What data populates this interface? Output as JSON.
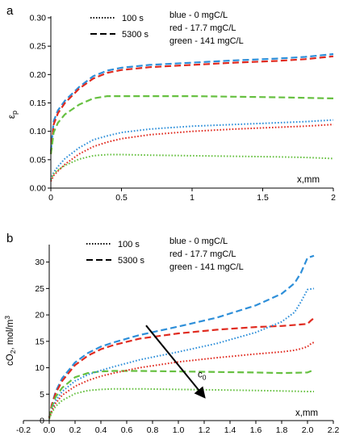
{
  "chart_data": [
    {
      "type": "line",
      "panel_label": "a",
      "xlabel": "x,mm",
      "ylabel": "εp",
      "ylabel_main": "ε",
      "ylabel_sub": "p",
      "xlim": [
        0,
        2
      ],
      "ylim": [
        0,
        0.3
      ],
      "xticks": [
        0,
        0.5,
        1,
        1.5,
        2
      ],
      "xtick_labels": [
        "0",
        "0.5",
        "1",
        "1.5",
        "2"
      ],
      "yticks": [
        0,
        0.05,
        0.1,
        0.15,
        0.2,
        0.25,
        0.3
      ],
      "ytick_labels": [
        "0.00",
        "0.05",
        "0.10",
        "0.15",
        "0.20",
        "0.25",
        "0.30"
      ],
      "grid": false,
      "style_legend": [
        {
          "label": "100 s",
          "dash": "dotted"
        },
        {
          "label": "5300 s",
          "dash": "dashed"
        }
      ],
      "color_legend": [
        {
          "label": "blue - 0 mgC/L",
          "color": "#2e8fd9"
        },
        {
          "label": "red - 17.7 mgC/L",
          "color": "#e02b20"
        },
        {
          "label": "green - 141 mgC/L",
          "color": "#66c040"
        }
      ],
      "series": [
        {
          "color": "#2e8fd9",
          "dash": "dashed",
          "x": [
            0,
            0.02,
            0.05,
            0.1,
            0.2,
            0.3,
            0.4,
            0.5,
            0.7,
            1.0,
            1.3,
            1.6,
            1.8,
            2.0
          ],
          "y": [
            0.065,
            0.118,
            0.137,
            0.154,
            0.178,
            0.197,
            0.207,
            0.212,
            0.217,
            0.221,
            0.225,
            0.228,
            0.231,
            0.236
          ]
        },
        {
          "color": "#e02b20",
          "dash": "dashed",
          "x": [
            0,
            0.02,
            0.05,
            0.1,
            0.2,
            0.3,
            0.4,
            0.5,
            0.7,
            1.0,
            1.3,
            1.6,
            1.8,
            2.0
          ],
          "y": [
            0.06,
            0.112,
            0.132,
            0.15,
            0.175,
            0.193,
            0.203,
            0.208,
            0.213,
            0.217,
            0.221,
            0.224,
            0.227,
            0.232
          ]
        },
        {
          "color": "#66c040",
          "dash": "dashed",
          "x": [
            0,
            0.02,
            0.05,
            0.1,
            0.2,
            0.3,
            0.4,
            0.5,
            0.7,
            1.0,
            1.3,
            1.6,
            1.8,
            2.0
          ],
          "y": [
            0.06,
            0.098,
            0.115,
            0.13,
            0.147,
            0.158,
            0.162,
            0.162,
            0.162,
            0.162,
            0.161,
            0.16,
            0.159,
            0.158
          ]
        },
        {
          "color": "#2e8fd9",
          "dash": "dotted",
          "x": [
            0,
            0.02,
            0.05,
            0.1,
            0.2,
            0.3,
            0.4,
            0.5,
            0.7,
            1.0,
            1.3,
            1.6,
            1.8,
            2.0
          ],
          "y": [
            0.015,
            0.028,
            0.038,
            0.052,
            0.071,
            0.085,
            0.092,
            0.098,
            0.104,
            0.109,
            0.112,
            0.115,
            0.117,
            0.12
          ]
        },
        {
          "color": "#e02b20",
          "dash": "dotted",
          "x": [
            0,
            0.02,
            0.05,
            0.1,
            0.2,
            0.3,
            0.4,
            0.5,
            0.7,
            1.0,
            1.3,
            1.6,
            1.8,
            2.0
          ],
          "y": [
            0.012,
            0.022,
            0.03,
            0.042,
            0.06,
            0.073,
            0.081,
            0.087,
            0.094,
            0.1,
            0.104,
            0.107,
            0.109,
            0.112
          ]
        },
        {
          "color": "#66c040",
          "dash": "dotted",
          "x": [
            0,
            0.02,
            0.05,
            0.1,
            0.2,
            0.3,
            0.4,
            0.5,
            0.7,
            1.0,
            1.3,
            1.6,
            1.8,
            2.0
          ],
          "y": [
            0.015,
            0.025,
            0.032,
            0.04,
            0.051,
            0.057,
            0.059,
            0.059,
            0.058,
            0.057,
            0.056,
            0.055,
            0.054,
            0.052
          ]
        }
      ]
    },
    {
      "type": "line",
      "panel_label": "b",
      "xlabel": "x,mm",
      "ylabel": "cO2, mol/m3",
      "ylabel_prefix": "cO",
      "ylabel_sub": "2",
      "ylabel_mid": ", mol/m",
      "ylabel_sup": "3",
      "xlim": [
        -0.2,
        2.2
      ],
      "ylim": [
        0,
        33
      ],
      "xticks": [
        -0.2,
        0,
        0.2,
        0.4,
        0.6,
        0.8,
        1.0,
        1.2,
        1.4,
        1.6,
        1.8,
        2.0,
        2.2
      ],
      "xtick_labels": [
        "-0.2",
        "0.0",
        "0.2",
        "0.4",
        "0.6",
        "0.8",
        "1.0",
        "1.2",
        "1.4",
        "1.6",
        "1.8",
        "2.0",
        "2.2"
      ],
      "yticks": [
        0,
        5,
        10,
        15,
        20,
        25,
        30
      ],
      "ytick_labels": [
        "0",
        "5",
        "10",
        "15",
        "20",
        "25",
        "30"
      ],
      "grid": false,
      "style_legend": [
        {
          "label": "100 s",
          "dash": "dotted"
        },
        {
          "label": "5300 s",
          "dash": "dashed"
        }
      ],
      "color_legend": [
        {
          "label": "blue - 0 mgC/L",
          "color": "#2e8fd9"
        },
        {
          "label": "red - 17.7 mgC/L",
          "color": "#e02b20"
        },
        {
          "label": "green - 141 mgC/L",
          "color": "#66c040"
        }
      ],
      "arrow": {
        "from": [
          0.75,
          18
        ],
        "to": [
          1.2,
          4.5
        ],
        "label_main": "c",
        "label_sub": "0"
      },
      "series": [
        {
          "color": "#2e8fd9",
          "dash": "dashed",
          "x": [
            0,
            0.02,
            0.05,
            0.1,
            0.2,
            0.3,
            0.4,
            0.5,
            0.7,
            1.0,
            1.3,
            1.6,
            1.8,
            1.9,
            1.95,
            2.0,
            2.05
          ],
          "y": [
            0.5,
            3,
            5.5,
            8,
            11,
            12.8,
            14,
            14.8,
            16.2,
            17.8,
            19.5,
            21.8,
            24,
            26,
            28,
            30.8,
            31.2
          ]
        },
        {
          "color": "#e02b20",
          "dash": "dashed",
          "x": [
            0,
            0.02,
            0.05,
            0.1,
            0.2,
            0.3,
            0.4,
            0.5,
            0.7,
            1.0,
            1.3,
            1.6,
            1.8,
            1.95,
            2.0,
            2.03,
            2.05
          ],
          "y": [
            0.5,
            3,
            5.2,
            7.5,
            10.5,
            12.3,
            13.5,
            14.3,
            15.5,
            16.5,
            17.2,
            17.7,
            17.9,
            18.2,
            18.3,
            19,
            19.4
          ]
        },
        {
          "color": "#66c040",
          "dash": "dashed",
          "x": [
            0,
            0.02,
            0.05,
            0.1,
            0.2,
            0.3,
            0.4,
            0.5,
            0.7,
            1.0,
            1.3,
            1.6,
            1.8,
            2.0,
            2.03,
            2.05
          ],
          "y": [
            0.5,
            2.5,
            4.5,
            6.2,
            8.2,
            9,
            9.3,
            9.4,
            9.4,
            9.3,
            9.2,
            9.1,
            9,
            9.1,
            9.4,
            9.6
          ]
        },
        {
          "color": "#2e8fd9",
          "dash": "dotted",
          "x": [
            0,
            0.02,
            0.05,
            0.1,
            0.2,
            0.3,
            0.4,
            0.5,
            0.7,
            1.0,
            1.3,
            1.6,
            1.8,
            1.9,
            1.95,
            2.0,
            2.05
          ],
          "y": [
            0.5,
            2,
            3.8,
            5.5,
            7.5,
            8.7,
            9.5,
            10.2,
            11.5,
            13,
            14.6,
            16.7,
            18.7,
            20.5,
            22.5,
            24.8,
            25
          ]
        },
        {
          "color": "#e02b20",
          "dash": "dotted",
          "x": [
            0,
            0.02,
            0.05,
            0.1,
            0.2,
            0.3,
            0.4,
            0.5,
            0.7,
            1.0,
            1.3,
            1.6,
            1.8,
            1.9,
            1.95,
            2.0,
            2.03,
            2.05
          ],
          "y": [
            0.5,
            1.8,
            3.3,
            4.8,
            6.5,
            7.6,
            8.4,
            9,
            10,
            11.1,
            11.9,
            12.6,
            13,
            13.3,
            13.6,
            14,
            14.6,
            14.8
          ]
        },
        {
          "color": "#66c040",
          "dash": "dotted",
          "x": [
            0,
            0.02,
            0.05,
            0.1,
            0.2,
            0.3,
            0.4,
            0.5,
            0.7,
            1.0,
            1.3,
            1.6,
            1.8,
            2.0,
            2.05
          ],
          "y": [
            0.3,
            1.5,
            2.7,
            3.8,
            5.1,
            5.7,
            5.9,
            6,
            6,
            5.9,
            5.8,
            5.7,
            5.6,
            5.5,
            5.5
          ]
        }
      ]
    }
  ]
}
